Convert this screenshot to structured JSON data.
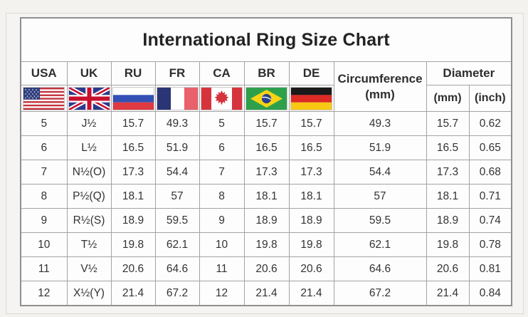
{
  "page": {
    "title": "International Ring Size Chart"
  },
  "table": {
    "country_columns": [
      {
        "label": "USA",
        "flag_icon": "usa-flag-icon"
      },
      {
        "label": "UK",
        "flag_icon": "uk-flag-icon"
      },
      {
        "label": "RU",
        "flag_icon": "russia-flag-icon"
      },
      {
        "label": "FR",
        "flag_icon": "france-flag-icon"
      },
      {
        "label": "CA",
        "flag_icon": "canada-flag-icon"
      },
      {
        "label": "BR",
        "flag_icon": "brazil-flag-icon"
      },
      {
        "label": "DE",
        "flag_icon": "germany-flag-icon"
      }
    ],
    "circumference_header": {
      "line1": "Circumference",
      "line2": "(mm)"
    },
    "diameter_header": {
      "label": "Diameter",
      "sub_mm": "(mm)",
      "sub_inch": "(inch)"
    },
    "column_names": [
      "usa-size",
      "uk-size",
      "ru-size",
      "fr-size",
      "ca-size",
      "br-size",
      "de-size",
      "circumference-mm",
      "diameter-mm",
      "diameter-inch"
    ]
  },
  "colors": {
    "page_background": "#f4f2ef",
    "table_background": "#fdfdfd",
    "grid_border": "#a3a3a3",
    "outer_border": "#8f8f8f",
    "text": "#333333"
  },
  "chart_data": {
    "type": "table",
    "title": "International Ring Size Chart",
    "columns": [
      "USA",
      "UK",
      "RU",
      "FR",
      "CA",
      "BR",
      "DE",
      "Circumference (mm)",
      "Diameter (mm)",
      "Diameter (inch)"
    ],
    "rows": [
      [
        "5",
        "J½",
        "15.7",
        "49.3",
        "5",
        "15.7",
        "15.7",
        "49.3",
        "15.7",
        "0.62"
      ],
      [
        "6",
        "L½",
        "16.5",
        "51.9",
        "6",
        "16.5",
        "16.5",
        "51.9",
        "16.5",
        "0.65"
      ],
      [
        "7",
        "N½(O)",
        "17.3",
        "54.4",
        "7",
        "17.3",
        "17.3",
        "54.4",
        "17.3",
        "0.68"
      ],
      [
        "8",
        "P½(Q)",
        "18.1",
        "57",
        "8",
        "18.1",
        "18.1",
        "57",
        "18.1",
        "0.71"
      ],
      [
        "9",
        "R½(S)",
        "18.9",
        "59.5",
        "9",
        "18.9",
        "18.9",
        "59.5",
        "18.9",
        "0.74"
      ],
      [
        "10",
        "T½",
        "19.8",
        "62.1",
        "10",
        "19.8",
        "19.8",
        "62.1",
        "19.8",
        "0.78"
      ],
      [
        "11",
        "V½",
        "20.6",
        "64.6",
        "11",
        "20.6",
        "20.6",
        "64.6",
        "20.6",
        "0.81"
      ],
      [
        "12",
        "X½(Y)",
        "21.4",
        "67.2",
        "12",
        "21.4",
        "21.4",
        "67.2",
        "21.4",
        "0.84"
      ]
    ]
  }
}
